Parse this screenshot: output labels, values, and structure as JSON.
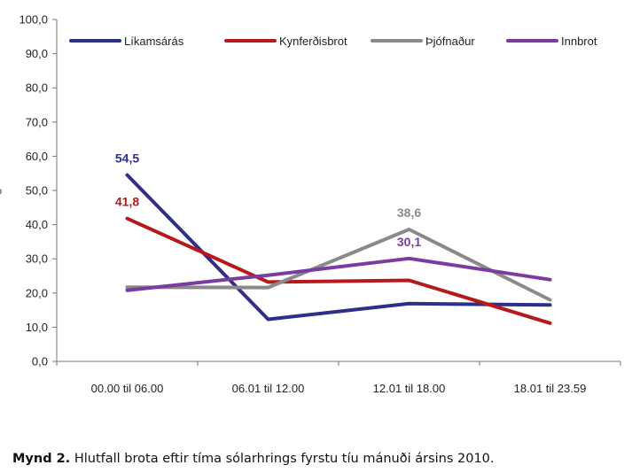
{
  "chart_data": {
    "type": "line",
    "categories": [
      "00.00 til 06.00",
      "06.01 til 12.00",
      "12.01 til 18.00",
      "18.01 til 23.59"
    ],
    "ylim": [
      0,
      100
    ],
    "yticks": [
      "0,0",
      "10,0",
      "20,0",
      "30,0",
      "40,0",
      "50,0",
      "60,0",
      "70,0",
      "80,0",
      "90,0",
      "100,0"
    ],
    "ylabel_fragment": "%",
    "grid": false,
    "legend_position": "top",
    "series": [
      {
        "name": "Líkamsárás",
        "color": "#2e2f86",
        "values": [
          54.5,
          12.3,
          16.9,
          16.5
        ]
      },
      {
        "name": "Kynferðisbrot",
        "color": "#b5191c",
        "values": [
          41.8,
          23.2,
          23.7,
          11.2
        ]
      },
      {
        "name": "Þjófnaður",
        "color": "#8a8a8a",
        "values": [
          21.7,
          21.6,
          38.6,
          18.0
        ]
      },
      {
        "name": "Innbrot",
        "color": "#7b3ca1",
        "values": [
          20.8,
          25.2,
          30.1,
          23.9
        ]
      }
    ],
    "data_labels": [
      {
        "series": 0,
        "index": 0,
        "text": "54,5"
      },
      {
        "series": 1,
        "index": 0,
        "text": "41,8"
      },
      {
        "series": 2,
        "index": 2,
        "text": "38,6"
      },
      {
        "series": 3,
        "index": 2,
        "text": "30,1"
      }
    ]
  },
  "caption": {
    "figure": "Mynd 2.",
    "text": " Hlutfall brota eftir tíma sólarhrings fyrstu tíu mánuði ársins 2010."
  }
}
